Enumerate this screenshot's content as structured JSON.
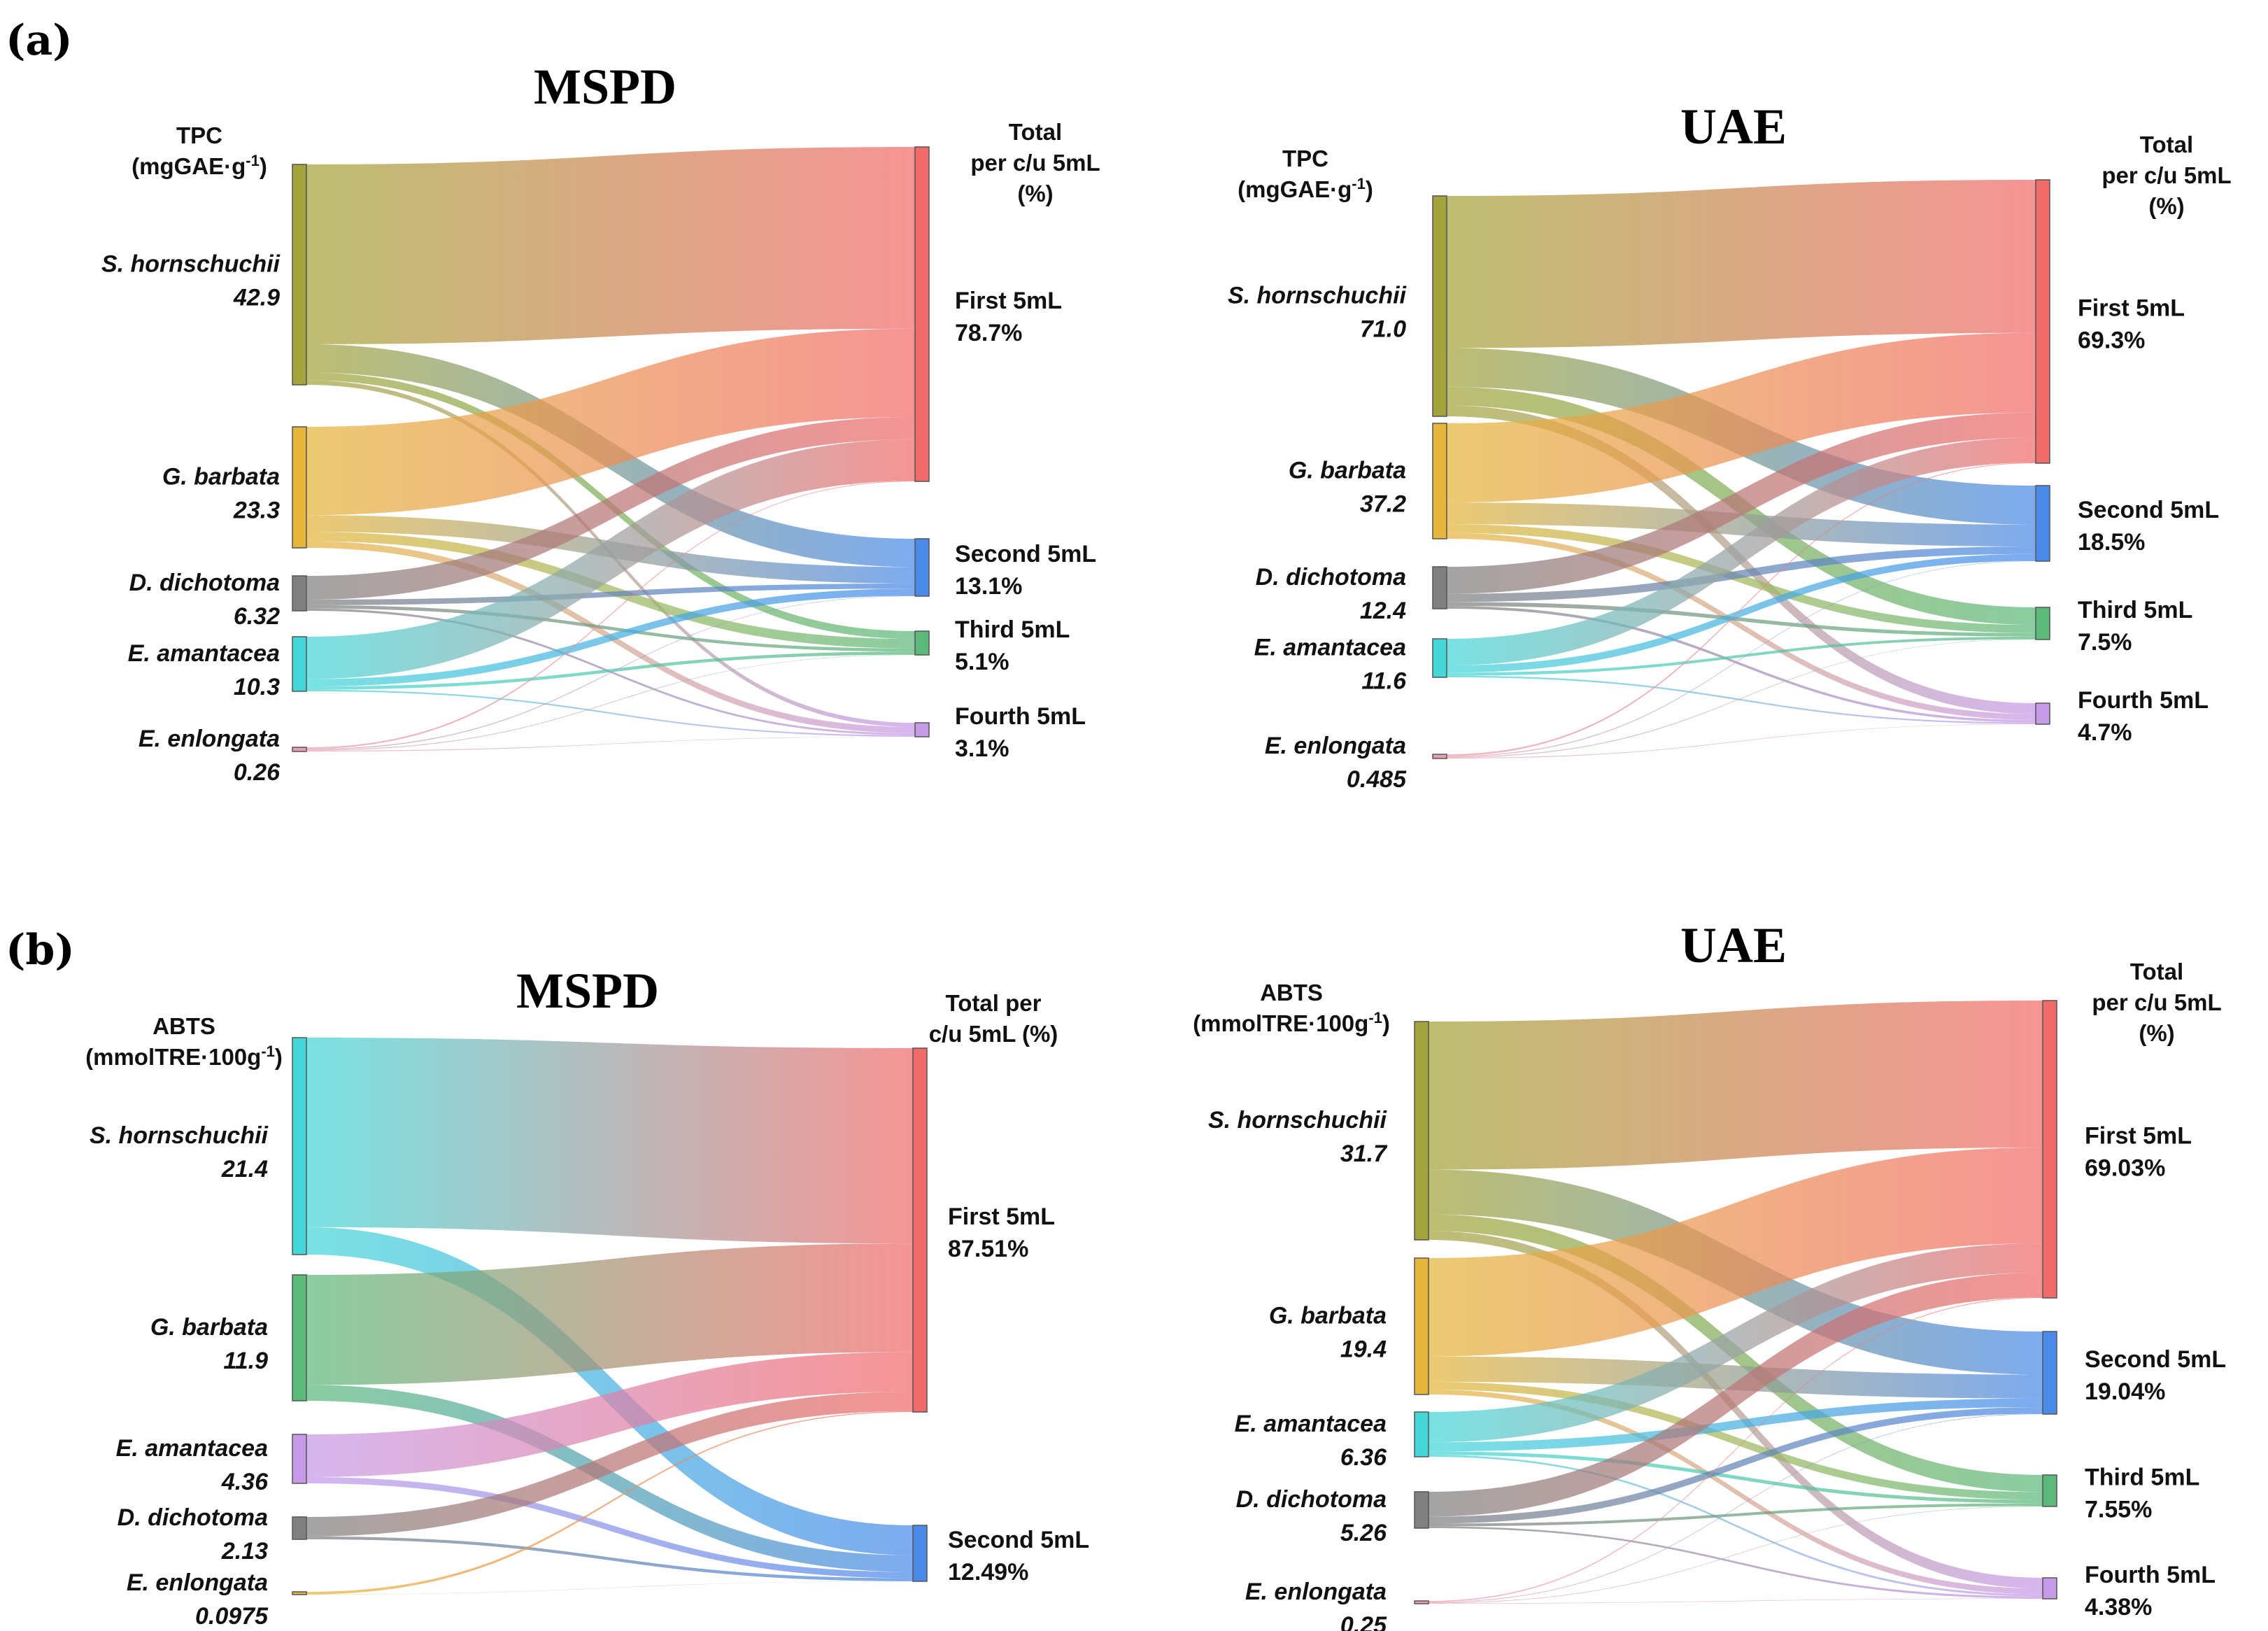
{
  "panels": {
    "a": "(a)",
    "b": "(b)"
  },
  "chart_data": [
    {
      "type": "sankey",
      "panel": "a",
      "title": "MSPD",
      "left_header": [
        "TPC",
        "(mgGAE·g⁻¹)"
      ],
      "right_header": [
        "Total",
        "per c/u 5mL",
        "(%)"
      ],
      "sources": [
        {
          "name": "S. hornschuchii",
          "value_label": "42.9",
          "value": 42.9,
          "color": "#a3a43b"
        },
        {
          "name": "G. barbata",
          "value_label": "23.3",
          "value": 23.3,
          "color": "#e5b53c"
        },
        {
          "name": "D. dichotoma",
          "value_label": "6.32",
          "value": 6.32,
          "color": "#808080"
        },
        {
          "name": "E. amantacea",
          "value_label": "10.3",
          "value": 10.3,
          "color": "#45d6d8"
        },
        {
          "name": "E. enlongata",
          "value_label": "0.26",
          "value": 0.26,
          "color": "#e8a0b0"
        }
      ],
      "targets": [
        {
          "name": "First 5mL",
          "value_label": "78.7%",
          "value": 78.7,
          "color": "#f26b6b"
        },
        {
          "name": "Second 5mL",
          "value_label": "13.1%",
          "value": 13.1,
          "color": "#4a8ae8"
        },
        {
          "name": "Third 5mL",
          "value_label": "5.1%",
          "value": 5.1,
          "color": "#5db87c"
        },
        {
          "name": "Fourth 5mL",
          "value_label": "3.1%",
          "value": 3.1,
          "color": "#c79ae8"
        }
      ],
      "flows": [
        [
          35.0,
          5.5,
          1.5,
          0.9
        ],
        [
          17.0,
          3.2,
          1.8,
          1.3
        ],
        [
          4.3,
          1.0,
          0.6,
          0.42
        ],
        [
          8.0,
          1.4,
          0.6,
          0.3
        ],
        [
          0.1,
          0.06,
          0.05,
          0.05
        ]
      ]
    },
    {
      "type": "sankey",
      "panel": "a",
      "title": "UAE",
      "left_header": [
        "TPC",
        "(mgGAE·g⁻¹)"
      ],
      "right_header": [
        "Total",
        "per c/u 5mL",
        "(%)"
      ],
      "sources": [
        {
          "name": "S. hornschuchii",
          "value_label": "71.0",
          "value": 71.0,
          "color": "#a3a43b"
        },
        {
          "name": "G. barbata",
          "value_label": "37.2",
          "value": 37.2,
          "color": "#e5b53c"
        },
        {
          "name": "D. dichotoma",
          "value_label": "12.4",
          "value": 12.4,
          "color": "#808080"
        },
        {
          "name": "E. amantacea",
          "value_label": "11.6",
          "value": 11.6,
          "color": "#45d6d8"
        },
        {
          "name": "E. enlongata",
          "value_label": "0.485",
          "value": 0.485,
          "color": "#e8a0b0"
        }
      ],
      "targets": [
        {
          "name": "First 5mL",
          "value_label": "69.3%",
          "value": 69.3,
          "color": "#f26b6b"
        },
        {
          "name": "Second 5mL",
          "value_label": "18.5%",
          "value": 18.5,
          "color": "#4a8ae8"
        },
        {
          "name": "Third 5mL",
          "value_label": "7.5%",
          "value": 7.5,
          "color": "#5db87c"
        },
        {
          "name": "Fourth 5mL",
          "value_label": "4.7%",
          "value": 4.7,
          "color": "#c79ae8"
        }
      ],
      "flows": [
        [
          49.0,
          12.5,
          6.0,
          3.5
        ],
        [
          25.5,
          7.0,
          2.8,
          1.9
        ],
        [
          8.0,
          2.4,
          1.2,
          0.8
        ],
        [
          8.0,
          2.2,
          0.9,
          0.5
        ],
        [
          0.2,
          0.1,
          0.1,
          0.085
        ]
      ]
    },
    {
      "type": "sankey",
      "panel": "b",
      "title": "MSPD",
      "left_header": [
        "ABTS",
        "(mmolTRE·100g⁻¹)"
      ],
      "right_header": [
        "Total per",
        "c/u 5mL (%)"
      ],
      "sources": [
        {
          "name": "S. hornschuchii",
          "value_label": "21.4",
          "value": 21.4,
          "color": "#45d6d8"
        },
        {
          "name": "G. barbata",
          "value_label": "11.9",
          "value": 11.9,
          "color": "#5db87c"
        },
        {
          "name": "E. amantacea",
          "value_label": "4.36",
          "value": 4.36,
          "color": "#c79ae8"
        },
        {
          "name": "D. dichotoma",
          "value_label": "2.13",
          "value": 2.13,
          "color": "#808080"
        },
        {
          "name": "E. enlongata",
          "value_label": "0.0975",
          "value": 0.0975,
          "color": "#e5b53c"
        }
      ],
      "targets": [
        {
          "name": "First 5mL",
          "value_label": "87.51%",
          "value": 87.51,
          "color": "#f26b6b"
        },
        {
          "name": "Second 5mL",
          "value_label": "12.49%",
          "value": 12.49,
          "color": "#4a8ae8"
        }
      ],
      "flows": [
        [
          18.7,
          2.7
        ],
        [
          10.4,
          1.5
        ],
        [
          3.8,
          0.56
        ],
        [
          1.85,
          0.28
        ],
        [
          0.09,
          0.0075
        ]
      ]
    },
    {
      "type": "sankey",
      "panel": "b",
      "title": "UAE",
      "left_header": [
        "ABTS",
        "(mmolTRE·100g⁻¹)"
      ],
      "right_header": [
        "Total",
        "per c/u 5mL",
        "(%)"
      ],
      "sources": [
        {
          "name": "S. hornschuchii",
          "value_label": "31.7",
          "value": 31.7,
          "color": "#a3a43b"
        },
        {
          "name": "G. barbata",
          "value_label": "19.4",
          "value": 19.4,
          "color": "#e5b53c"
        },
        {
          "name": "E. amantacea",
          "value_label": "6.36",
          "value": 6.36,
          "color": "#45d6d8"
        },
        {
          "name": "D. dichotoma",
          "value_label": "5.26",
          "value": 5.26,
          "color": "#808080"
        },
        {
          "name": "E. enlongata",
          "value_label": "0.25",
          "value": 0.25,
          "color": "#e8a0b0"
        }
      ],
      "targets": [
        {
          "name": "First 5mL",
          "value_label": "69.03%",
          "value": 69.03,
          "color": "#f26b6b"
        },
        {
          "name": "Second 5mL",
          "value_label": "19.04%",
          "value": 19.04,
          "color": "#4a8ae8"
        },
        {
          "name": "Third 5mL",
          "value_label": "7.55%",
          "value": 7.55,
          "color": "#5db87c"
        },
        {
          "name": "Fourth 5mL",
          "value_label": "4.38%",
          "value": 4.38,
          "color": "#c79ae8"
        }
      ],
      "flows": [
        [
          21.5,
          6.5,
          2.4,
          1.3
        ],
        [
          14.0,
          3.6,
          1.1,
          0.7
        ],
        [
          4.3,
          1.3,
          0.5,
          0.26
        ],
        [
          3.6,
          1.0,
          0.4,
          0.26
        ],
        [
          0.1,
          0.06,
          0.05,
          0.04
        ]
      ]
    }
  ]
}
